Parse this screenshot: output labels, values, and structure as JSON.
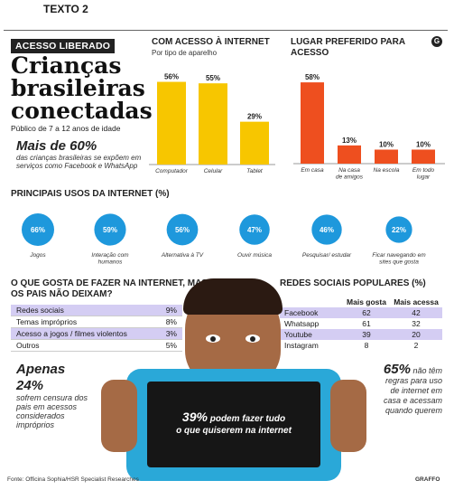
{
  "page_label": "TEXTO 2",
  "badge": "ACESSO LIBERADO",
  "headline": [
    "Crianças",
    "brasileiras",
    "conectadas"
  ],
  "subhead": "Público de 7 a 12 anos de idade",
  "stat60": {
    "value": "Mais de 60%",
    "text": "das crianças brasileiras se expõem em serviços como Facebook e WhatsApp"
  },
  "corner_icon": "G",
  "chart_data": [
    {
      "type": "bar",
      "title": "COM ACESSO À INTERNET",
      "subtitle": "Por tipo de aparelho",
      "categories": [
        "Computador",
        "Celular",
        "Tablet"
      ],
      "values": [
        56,
        55,
        29
      ],
      "value_labels": [
        "56%",
        "55%",
        "29%"
      ],
      "color": "#f7c600",
      "ylim": [
        0,
        60
      ]
    },
    {
      "type": "bar",
      "title": "LUGAR PREFERIDO PARA ACESSO",
      "categories": [
        "Em casa",
        "Na casa de amigos",
        "Na escola",
        "Em todo lugar"
      ],
      "values": [
        58,
        13,
        10,
        10
      ],
      "value_labels": [
        "58%",
        "13%",
        "10%",
        "10%"
      ],
      "color": "#ee4f1f",
      "ylim": [
        0,
        60
      ]
    },
    {
      "type": "bubble",
      "title": "PRINCIPAIS USOS DA INTERNET (%)",
      "categories": [
        "Jogos",
        "Interação com humanos",
        "Alternativa à TV",
        "Ouvir música",
        "Pesquisar/ estudar",
        "Ficar navegando em sites que gosta"
      ],
      "values": [
        66,
        59,
        56,
        47,
        46,
        22
      ],
      "value_labels": [
        "66%",
        "59%",
        "56%",
        "47%",
        "46%",
        "22%"
      ],
      "color": "#1e98dc"
    },
    {
      "type": "table",
      "title": "O QUE GOSTA DE FAZER NA INTERNET, MAS OS PAIS NÃO DEIXAM?",
      "rows": [
        {
          "label": "Redes sociais",
          "value": "9%",
          "highlight": true
        },
        {
          "label": "Temas impróprios",
          "value": "8%",
          "highlight": false
        },
        {
          "label": "Acesso a jogos / filmes violentos",
          "value": "3%",
          "highlight": true
        },
        {
          "label": "Outros",
          "value": "5%",
          "highlight": false
        }
      ]
    },
    {
      "type": "table",
      "title": "REDES SOCIAIS POPULARES (%)",
      "columns": [
        "",
        "Mais gosta",
        "Mais acessa"
      ],
      "rows": [
        {
          "label": "Facebook",
          "a": "62",
          "b": "42",
          "highlight": true
        },
        {
          "label": "Whatsapp",
          "a": "61",
          "b": "32",
          "highlight": false
        },
        {
          "label": "Youtube",
          "a": "39",
          "b": "20",
          "highlight": true
        },
        {
          "label": "Instagram",
          "a": "8",
          "b": "2",
          "highlight": false
        }
      ]
    }
  ],
  "apenas": {
    "line1": "Apenas",
    "line2": "24%",
    "text": "sofrem censura dos pais em acessos considerados impróprios"
  },
  "stat65": {
    "value": "65%",
    "text": "não têm regras para uso de internet em casa e acessam quando querem"
  },
  "tablet_text": {
    "big": "39%",
    "rest1": " podem fazer tudo",
    "rest2": "o que quiserem na internet"
  },
  "source": "Fonte: Officina Sophia/HSR Specialist Researches",
  "credit": "GRAFFO"
}
